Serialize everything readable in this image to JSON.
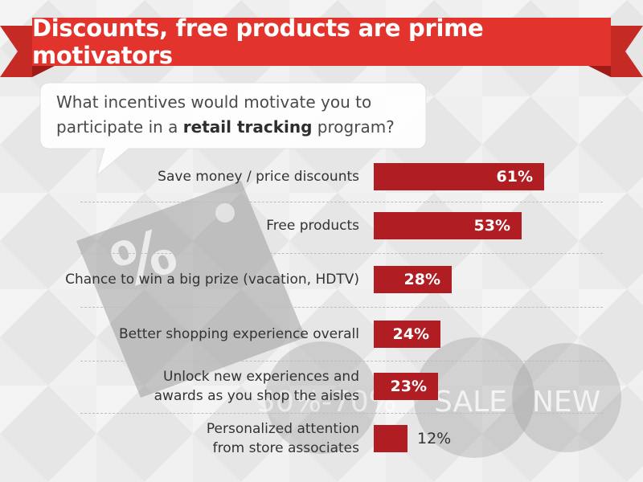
{
  "banner": {
    "title": "Discounts, free products are prime motivators"
  },
  "question": {
    "text_part1": "What incentives would motivate you to participate in a ",
    "text_bold": "retail tracking",
    "text_part2": " program?"
  },
  "background_decor": {
    "tag_text": "%",
    "badges": [
      "50%-70%",
      "SALE",
      "NEW"
    ]
  },
  "colors": {
    "bar": "#b01e23",
    "banner": "#e2342d",
    "banner_dark": "#9e1b17"
  },
  "chart_data": {
    "type": "bar",
    "orientation": "horizontal",
    "categories": [
      "Save money / price discounts",
      "Free products",
      "Chance to win a big prize (vacation, HDTV)",
      "Better shopping experience overall",
      "Unlock new experiences and awards as you shop the aisles",
      "Personalized attention from store associates"
    ],
    "category_lines": [
      [
        "Save money / price discounts"
      ],
      [
        "Free products"
      ],
      [
        "Chance to win a big prize (vacation, HDTV)"
      ],
      [
        "Better shopping experience overall"
      ],
      [
        "Unlock new experiences and",
        "awards as you shop the aisles"
      ],
      [
        "Personalized attention",
        "from store associates"
      ]
    ],
    "values": [
      61,
      53,
      28,
      24,
      23,
      12
    ],
    "value_labels": [
      "61%",
      "53%",
      "28%",
      "24%",
      "23%",
      "12%"
    ],
    "title": "Discounts, free products are prime motivators",
    "unit": "%",
    "xlim": [
      0,
      61
    ]
  }
}
